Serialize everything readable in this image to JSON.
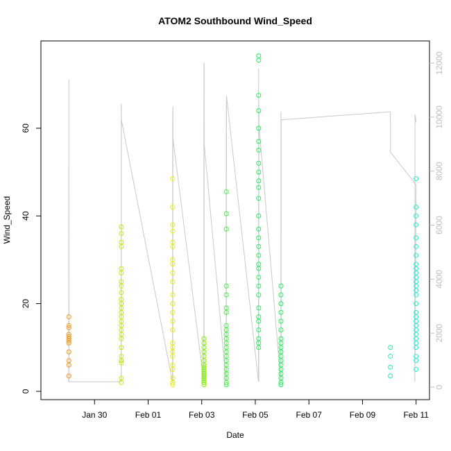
{
  "chart_data": {
    "type": "scatter",
    "title": "ATOM2 Southbound Wind_Speed",
    "xlabel": "Date",
    "ylabel": "Wind_Speed",
    "xlim": [
      "2024-01-28T00:00",
      "2024-02-11T12:00"
    ],
    "ylim": [
      0,
      78
    ],
    "y2lim": [
      0,
      12000
    ],
    "x_ticks": [
      "Jan 30",
      "Feb 01",
      "Feb 03",
      "Feb 05",
      "Feb 07",
      "Feb 09",
      "Feb 11"
    ],
    "y_ticks": [
      "0",
      "20",
      "40",
      "60"
    ],
    "y2_ticks": [
      "0",
      "2000",
      "4000",
      "6000",
      "8000",
      "10000",
      "12000"
    ],
    "colors": {
      "c1": "#e8961e",
      "c2": "#c8e600",
      "c3": "#e6f000",
      "c4": "#7ff000",
      "c5": "#3cf23c",
      "c6": "#1ef05a",
      "c7": "#1ef0a0",
      "c8": "#28e8c8",
      "secondary_line": "#c8c8c8"
    },
    "series": [
      {
        "color": "c1",
        "points": [
          [
            "2024-01-29T01:00",
            17.0
          ],
          [
            "2024-01-29T01:00",
            15.0
          ],
          [
            "2024-01-29T01:00",
            14.5
          ],
          [
            "2024-01-29T01:00",
            13.0
          ],
          [
            "2024-01-29T01:00",
            12.5
          ],
          [
            "2024-01-29T01:00",
            12.0
          ],
          [
            "2024-01-29T01:00",
            11.5
          ],
          [
            "2024-01-29T01:00",
            11.0
          ],
          [
            "2024-01-29T01:00",
            9.0
          ],
          [
            "2024-01-29T01:00",
            7.0
          ],
          [
            "2024-01-29T01:00",
            6.0
          ],
          [
            "2024-01-29T01:00",
            3.5
          ]
        ]
      },
      {
        "color": "c2",
        "points": [
          [
            "2024-01-31T00:00",
            37.5
          ],
          [
            "2024-01-31T00:00",
            36.0
          ],
          [
            "2024-01-31T00:00",
            34.0
          ],
          [
            "2024-01-31T00:00",
            33.0
          ],
          [
            "2024-01-31T00:00",
            28.0
          ],
          [
            "2024-01-31T00:00",
            27.0
          ],
          [
            "2024-01-31T00:00",
            25.0
          ],
          [
            "2024-01-31T00:00",
            24.0
          ],
          [
            "2024-01-31T00:00",
            22.5
          ],
          [
            "2024-01-31T00:00",
            21.0
          ],
          [
            "2024-01-31T00:00",
            20.0
          ],
          [
            "2024-01-31T00:00",
            19.0
          ],
          [
            "2024-01-31T00:00",
            18.0
          ],
          [
            "2024-01-31T00:00",
            17.0
          ],
          [
            "2024-01-31T00:00",
            16.0
          ],
          [
            "2024-01-31T00:00",
            15.0
          ],
          [
            "2024-01-31T00:00",
            14.0
          ],
          [
            "2024-01-31T00:00",
            13.0
          ],
          [
            "2024-01-31T00:00",
            12.0
          ],
          [
            "2024-01-31T00:00",
            10.0
          ],
          [
            "2024-01-31T00:00",
            8.0
          ],
          [
            "2024-01-31T00:00",
            7.0
          ],
          [
            "2024-01-31T00:00",
            6.5
          ],
          [
            "2024-01-31T00:00",
            3.0
          ],
          [
            "2024-01-31T00:00",
            2.0
          ]
        ]
      },
      {
        "color": "c3",
        "points": [
          [
            "2024-02-01T22:00",
            48.5
          ],
          [
            "2024-02-01T22:00",
            42.0
          ],
          [
            "2024-02-01T22:00",
            38.0
          ],
          [
            "2024-02-01T22:00",
            36.5
          ],
          [
            "2024-02-01T22:00",
            34.0
          ],
          [
            "2024-02-01T22:00",
            33.0
          ],
          [
            "2024-02-01T22:00",
            30.0
          ],
          [
            "2024-02-01T22:00",
            29.0
          ],
          [
            "2024-02-01T22:00",
            27.0
          ],
          [
            "2024-02-01T22:00",
            25.0
          ],
          [
            "2024-02-01T22:00",
            22.0
          ],
          [
            "2024-02-01T22:00",
            20.0
          ],
          [
            "2024-02-01T22:00",
            18.0
          ],
          [
            "2024-02-01T22:00",
            16.0
          ],
          [
            "2024-02-01T22:00",
            14.0
          ],
          [
            "2024-02-01T22:00",
            11.0
          ],
          [
            "2024-02-01T22:00",
            10.0
          ],
          [
            "2024-02-01T22:00",
            9.0
          ],
          [
            "2024-02-01T22:00",
            8.0
          ],
          [
            "2024-02-01T22:00",
            6.0
          ],
          [
            "2024-02-01T22:00",
            5.0
          ],
          [
            "2024-02-01T22:00",
            3.0
          ],
          [
            "2024-02-01T22:00",
            2.0
          ],
          [
            "2024-02-01T22:00",
            1.5
          ]
        ]
      },
      {
        "color": "c4",
        "points": [
          [
            "2024-02-03T02:00",
            12.0
          ],
          [
            "2024-02-03T02:00",
            11.0
          ],
          [
            "2024-02-03T02:00",
            10.0
          ],
          [
            "2024-02-03T02:00",
            9.0
          ],
          [
            "2024-02-03T02:00",
            8.0
          ],
          [
            "2024-02-03T02:00",
            7.0
          ],
          [
            "2024-02-03T02:00",
            6.0
          ],
          [
            "2024-02-03T02:00",
            5.5
          ],
          [
            "2024-02-03T02:00",
            5.0
          ],
          [
            "2024-02-03T02:00",
            4.5
          ],
          [
            "2024-02-03T02:00",
            4.0
          ],
          [
            "2024-02-03T02:00",
            3.5
          ],
          [
            "2024-02-03T02:00",
            3.0
          ],
          [
            "2024-02-03T02:00",
            2.5
          ],
          [
            "2024-02-03T02:00",
            2.0
          ],
          [
            "2024-02-03T02:00",
            1.5
          ]
        ]
      },
      {
        "color": "c5",
        "points": [
          [
            "2024-02-03T22:00",
            45.5
          ],
          [
            "2024-02-03T22:00",
            40.5
          ],
          [
            "2024-02-03T22:00",
            37.0
          ],
          [
            "2024-02-03T22:00",
            24.0
          ],
          [
            "2024-02-03T22:00",
            22.0
          ],
          [
            "2024-02-03T22:00",
            19.0
          ],
          [
            "2024-02-03T22:00",
            18.0
          ],
          [
            "2024-02-03T22:00",
            15.0
          ],
          [
            "2024-02-03T22:00",
            14.0
          ],
          [
            "2024-02-03T22:00",
            13.0
          ],
          [
            "2024-02-03T22:00",
            12.0
          ],
          [
            "2024-02-03T22:00",
            11.0
          ],
          [
            "2024-02-03T22:00",
            10.0
          ],
          [
            "2024-02-03T22:00",
            9.0
          ],
          [
            "2024-02-03T22:00",
            8.0
          ],
          [
            "2024-02-03T22:00",
            7.0
          ],
          [
            "2024-02-03T22:00",
            6.0
          ],
          [
            "2024-02-03T22:00",
            5.0
          ],
          [
            "2024-02-03T22:00",
            4.0
          ],
          [
            "2024-02-03T22:00",
            3.0
          ],
          [
            "2024-02-03T22:00",
            2.0
          ],
          [
            "2024-02-03T22:00",
            1.5
          ]
        ]
      },
      {
        "color": "c6",
        "points": [
          [
            "2024-02-05T03:00",
            76.5
          ],
          [
            "2024-02-05T03:00",
            75.5
          ],
          [
            "2024-02-05T03:00",
            67.5
          ],
          [
            "2024-02-05T03:00",
            64.0
          ],
          [
            "2024-02-05T03:00",
            60.0
          ],
          [
            "2024-02-05T03:00",
            57.0
          ],
          [
            "2024-02-05T03:00",
            55.0
          ],
          [
            "2024-02-05T03:00",
            52.0
          ],
          [
            "2024-02-05T03:00",
            50.0
          ],
          [
            "2024-02-05T03:00",
            48.0
          ],
          [
            "2024-02-05T03:00",
            46.5
          ],
          [
            "2024-02-05T03:00",
            44.0
          ],
          [
            "2024-02-05T03:00",
            40.0
          ],
          [
            "2024-02-05T03:00",
            37.0
          ],
          [
            "2024-02-05T03:00",
            35.0
          ],
          [
            "2024-02-05T03:00",
            33.0
          ],
          [
            "2024-02-05T03:00",
            31.0
          ],
          [
            "2024-02-05T03:00",
            29.0
          ],
          [
            "2024-02-05T03:00",
            28.0
          ],
          [
            "2024-02-05T03:00",
            26.0
          ],
          [
            "2024-02-05T03:00",
            24.0
          ],
          [
            "2024-02-05T03:00",
            22.0
          ],
          [
            "2024-02-05T03:00",
            19.0
          ],
          [
            "2024-02-05T03:00",
            17.0
          ],
          [
            "2024-02-05T03:00",
            16.0
          ],
          [
            "2024-02-05T03:00",
            14.0
          ],
          [
            "2024-02-05T03:00",
            12.0
          ],
          [
            "2024-02-05T03:00",
            11.0
          ],
          [
            "2024-02-05T03:00",
            10.0
          ],
          [
            "2024-02-05T23:00",
            24.0
          ],
          [
            "2024-02-05T23:00",
            22.0
          ],
          [
            "2024-02-05T23:00",
            20.0
          ],
          [
            "2024-02-05T23:00",
            18.0
          ],
          [
            "2024-02-05T23:00",
            16.0
          ],
          [
            "2024-02-05T23:00",
            14.0
          ],
          [
            "2024-02-05T23:00",
            12.0
          ],
          [
            "2024-02-05T23:00",
            11.0
          ],
          [
            "2024-02-05T23:00",
            10.0
          ],
          [
            "2024-02-05T23:00",
            9.0
          ],
          [
            "2024-02-05T23:00",
            8.0
          ],
          [
            "2024-02-05T23:00",
            7.0
          ],
          [
            "2024-02-05T23:00",
            6.0
          ],
          [
            "2024-02-05T23:00",
            5.0
          ],
          [
            "2024-02-05T23:00",
            4.0
          ],
          [
            "2024-02-05T23:00",
            3.0
          ],
          [
            "2024-02-05T23:00",
            2.0
          ],
          [
            "2024-02-05T23:00",
            1.5
          ]
        ]
      },
      {
        "color": "c7",
        "points": [
          [
            "2024-02-10T01:00",
            10.0
          ],
          [
            "2024-02-10T01:00",
            8.0
          ],
          [
            "2024-02-10T01:00",
            5.5
          ],
          [
            "2024-02-10T01:00",
            3.5
          ]
        ]
      },
      {
        "color": "c8",
        "points": [
          [
            "2024-02-11T00:00",
            48.5
          ],
          [
            "2024-02-11T00:00",
            42.0
          ],
          [
            "2024-02-11T00:00",
            40.0
          ],
          [
            "2024-02-11T00:00",
            38.0
          ],
          [
            "2024-02-11T00:00",
            35.0
          ],
          [
            "2024-02-11T00:00",
            33.0
          ],
          [
            "2024-02-11T00:00",
            31.0
          ],
          [
            "2024-02-11T00:00",
            29.0
          ],
          [
            "2024-02-11T00:00",
            28.0
          ],
          [
            "2024-02-11T00:00",
            27.0
          ],
          [
            "2024-02-11T00:00",
            26.0
          ],
          [
            "2024-02-11T00:00",
            25.0
          ],
          [
            "2024-02-11T00:00",
            24.0
          ],
          [
            "2024-02-11T00:00",
            23.0
          ],
          [
            "2024-02-11T00:00",
            22.0
          ],
          [
            "2024-02-11T00:00",
            20.0
          ],
          [
            "2024-02-11T00:00",
            18.0
          ],
          [
            "2024-02-11T00:00",
            17.0
          ],
          [
            "2024-02-11T00:00",
            16.0
          ],
          [
            "2024-02-11T00:00",
            15.0
          ],
          [
            "2024-02-11T00:00",
            14.0
          ],
          [
            "2024-02-11T00:00",
            13.0
          ],
          [
            "2024-02-11T00:00",
            12.0
          ],
          [
            "2024-02-11T00:00",
            11.0
          ],
          [
            "2024-02-11T00:00",
            10.0
          ],
          [
            "2024-02-11T00:00",
            8.0
          ],
          [
            "2024-02-11T00:00",
            7.0
          ],
          [
            "2024-02-11T00:00",
            5.0
          ]
        ]
      }
    ],
    "secondary_series": {
      "axis": "right",
      "type": "line",
      "points": [
        [
          "2024-01-29T00:55",
          200
        ],
        [
          "2024-01-29T01:00",
          11400
        ],
        [
          "2024-01-29T01:05",
          200
        ],
        [
          "2024-01-30T23:55",
          200
        ],
        [
          "2024-01-30T23:58",
          10500
        ],
        [
          "2024-01-31T00:00",
          200
        ],
        [
          "2024-01-31T00:02",
          10400
        ],
        [
          "2024-01-31T00:05",
          9900
        ],
        [
          "2024-02-01T21:50",
          200
        ],
        [
          "2024-02-01T22:00",
          10200
        ],
        [
          "2024-02-01T22:05",
          200
        ],
        [
          "2024-02-01T22:10",
          10400
        ],
        [
          "2024-02-01T22:15",
          9200
        ],
        [
          "2024-02-03T01:50",
          200
        ],
        [
          "2024-02-03T02:00",
          12000
        ],
        [
          "2024-02-03T02:05",
          200
        ],
        [
          "2024-02-03T02:10",
          12000
        ],
        [
          "2024-02-03T02:15",
          9000
        ],
        [
          "2024-02-03T21:50",
          200
        ],
        [
          "2024-02-03T22:00",
          10500
        ],
        [
          "2024-02-03T22:05",
          200
        ],
        [
          "2024-02-03T22:10",
          10800
        ],
        [
          "2024-02-05T02:50",
          200
        ],
        [
          "2024-02-05T03:00",
          11800
        ],
        [
          "2024-02-05T03:05",
          200
        ],
        [
          "2024-02-05T03:10",
          10500
        ],
        [
          "2024-02-05T03:15",
          9700
        ],
        [
          "2024-02-05T22:50",
          200
        ],
        [
          "2024-02-05T23:00",
          10200
        ],
        [
          "2024-02-05T23:05",
          200
        ],
        [
          "2024-02-05T23:10",
          9900
        ],
        [
          "2024-02-10T01:00",
          10200
        ],
        [
          "2024-02-10T01:05",
          8700
        ],
        [
          "2024-02-11T00:00",
          7500
        ],
        [
          "2024-02-10T22:50",
          200
        ],
        [
          "2024-02-10T23:00",
          10100
        ],
        [
          "2024-02-11T00:10",
          9800
        ]
      ]
    }
  }
}
